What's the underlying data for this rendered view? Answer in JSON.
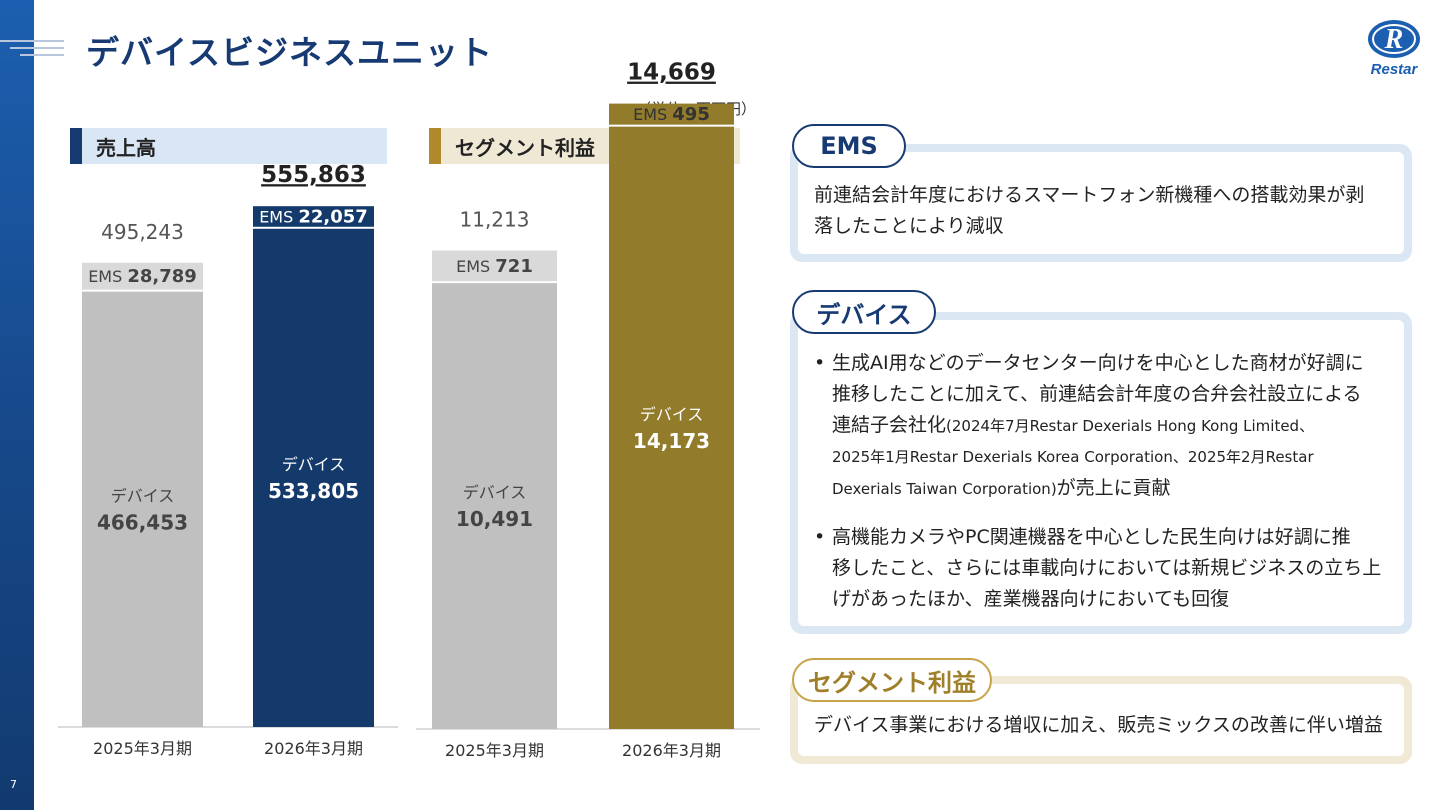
{
  "page": {
    "number": "7",
    "title": "デバイスビジネスユニット",
    "logo_text": "Restar",
    "unit_label": "（単位：百万円）"
  },
  "colors": {
    "navy": "#143a6b",
    "gold": "#927b2b",
    "grey": "#c0c0c0",
    "ems_grey": "#d9d9d9"
  },
  "sales": {
    "header": "売上高"
  },
  "segment": {
    "header": "セグメント利益"
  },
  "chart_data": [
    {
      "type": "bar",
      "title": "売上高",
      "categories": [
        "2025年3月期",
        "2026年3月期"
      ],
      "series": [
        {
          "name": "デバイス",
          "values": [
            466453,
            533805
          ]
        },
        {
          "name": "EMS",
          "values": [
            28789,
            22057
          ]
        }
      ],
      "totals": [
        495243,
        555863
      ],
      "ylim": [
        0,
        600000
      ],
      "labels": {
        "total": [
          "495,243",
          "555,863"
        ],
        "device_name": "デバイス",
        "device_value": [
          "466,453",
          "533,805"
        ],
        "ems_name": "EMS",
        "ems_value": [
          "28,789",
          "22,057"
        ]
      }
    },
    {
      "type": "bar",
      "title": "セグメント利益",
      "categories": [
        "2025年3月期",
        "2026年3月期"
      ],
      "series": [
        {
          "name": "デバイス",
          "values": [
            10491,
            14173
          ]
        },
        {
          "name": "EMS",
          "values": [
            721,
            495
          ]
        }
      ],
      "totals": [
        11213,
        14669
      ],
      "ylim": [
        0,
        16000
      ],
      "labels": {
        "total": [
          "11,213",
          "14,669"
        ],
        "device_name": "デバイス",
        "device_value": [
          "10,491",
          "14,173"
        ],
        "ems_name": "EMS",
        "ems_value": [
          "721",
          "495"
        ]
      }
    }
  ],
  "ems_box": {
    "label": "EMS",
    "line1": "前連結会計年度におけるスマートフォン新機種への搭載効果が剥",
    "line2": "落したことにより減収"
  },
  "device_box": {
    "label": "デバイス",
    "b1_l1": "生成AI用などのデータセンター向けを中心とした商材が好調に",
    "b1_l2": "推移したことに加えて、前連結会計年度の合弁会社設立による",
    "b1_l3a": "連結子会社化",
    "b1_l3b": "(2024年7月Restar Dexerials Hong Kong Limited、",
    "b1_l4": "2025年1月Restar Dexerials Korea Corporation、2025年2月Restar",
    "b1_l5a": "Dexerials Taiwan Corporation)",
    "b1_l5b": "が売上に貢献",
    "b2_l1": "高機能カメラやPC関連機器を中心とした民生向けは好調に推",
    "b2_l2": "移したこと、さらには車載向けにおいては新規ビジネスの立ち上",
    "b2_l3": "げがあったほか、産業機器向けにおいても回復"
  },
  "segment_box": {
    "label": "セグメント利益",
    "line1": "デバイス事業における増収に加え、販売ミックスの改善に伴い増益"
  }
}
